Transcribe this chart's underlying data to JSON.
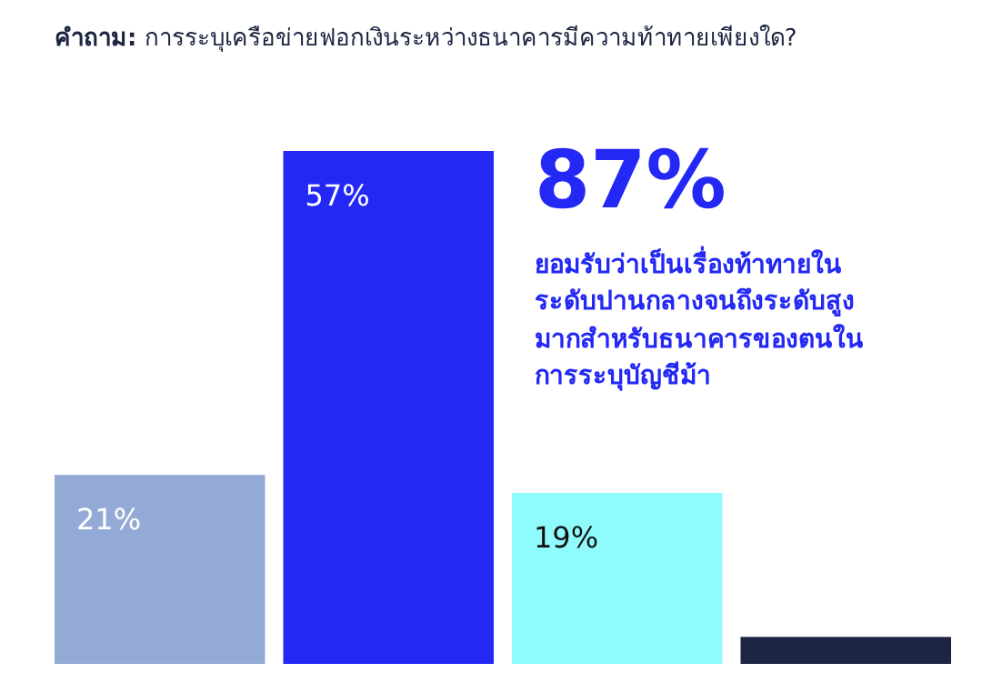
{
  "chart_data": {
    "type": "bar",
    "title": "คำถาม: การระบุเครือข่ายฟอกเงินระหว่างธนาคารมีความท้าทายเพียงใด?",
    "categories": [
      null,
      null,
      null,
      null
    ],
    "values": [
      21,
      57,
      19,
      3
    ],
    "colors": [
      "#94aad6",
      "#2328f5",
      "#8ffbfd",
      "#1c2541"
    ],
    "value_labels": [
      "21%",
      "57%",
      "19%",
      null
    ],
    "annotations": [
      "87%",
      "ยอมรับว่าเป็นเรื่องท้าทายในระดับปานกลางจนถึงระดับสูงมากสำหรับธนาคารของตนในการระบุบัญชีม้า"
    ]
  }
}
